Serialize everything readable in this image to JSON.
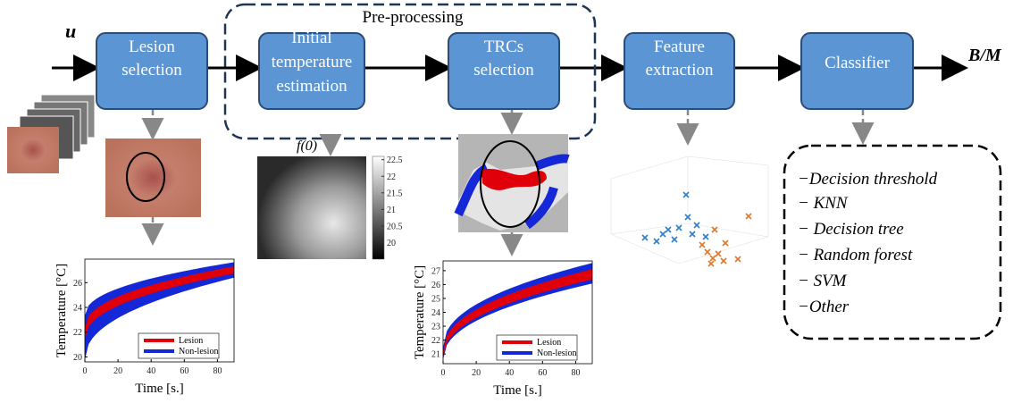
{
  "input_label": "u",
  "output_label": "B/M",
  "group_label": "Pre-processing",
  "nodes": [
    {
      "label": "Lesion selection"
    },
    {
      "label": "Initial temperature estimation"
    },
    {
      "label": "TRCs selection"
    },
    {
      "label": "Feature extraction"
    },
    {
      "label": "Classifier"
    }
  ],
  "initial_estimate_label": "f(0)",
  "heatmap": {
    "clim": [
      19.5,
      22.6
    ],
    "ticks": [
      22.5,
      22,
      21.5,
      21,
      20.5,
      20
    ]
  },
  "plots": [
    {
      "xlabel": "Time [s.]",
      "ylabel": "Temperature [°C]",
      "xlim": [
        0,
        90
      ],
      "xticks": [
        0,
        20,
        40,
        60,
        80
      ],
      "ylim": [
        19.6,
        27.9
      ],
      "yticks": [
        20,
        22,
        24,
        26
      ],
      "legend": [
        "Lesion",
        "Non-lesion"
      ]
    },
    {
      "xlabel": "Time [s.]",
      "ylabel": "Temperature [°C]",
      "xlim": [
        0,
        90
      ],
      "xticks": [
        0,
        20,
        40,
        60,
        80
      ],
      "ylim": [
        20.3,
        27.7
      ],
      "yticks": [
        21,
        22,
        23,
        24,
        25,
        26,
        27
      ],
      "legend": [
        "Lesion",
        "Non-lesion"
      ]
    }
  ],
  "classifiers": [
    "−Decision threshold",
    "− KNN",
    "− Decision tree",
    "− Random forest",
    "− SVM",
    "−Other"
  ]
}
